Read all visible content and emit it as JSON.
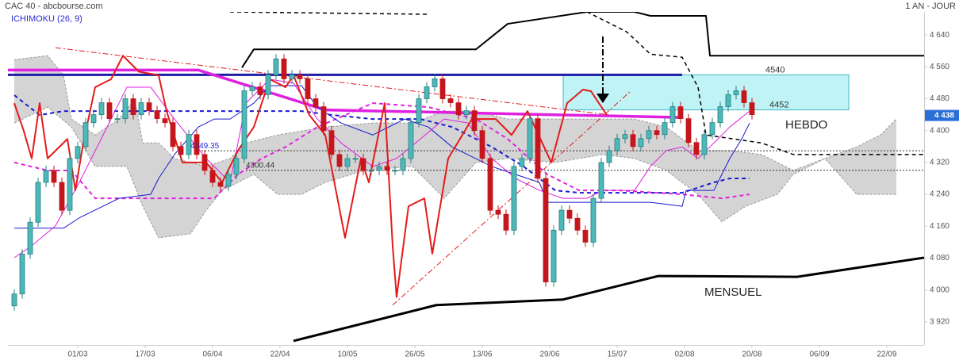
{
  "chart_data": {
    "type": "candlestick",
    "title": "CAC 40 - abcbourse.com",
    "period": "1 AN - JOUR",
    "indicator": "ICHIMOKU (26, 9)",
    "xlim": [
      -0.8,
      114.7
    ],
    "xticks": [
      {
        "value": 8,
        "label": "01/03"
      },
      {
        "value": 16.5,
        "label": "17/03"
      },
      {
        "value": 25,
        "label": "06/04"
      },
      {
        "value": 33.5,
        "label": "22/04"
      },
      {
        "value": 42,
        "label": "10/05"
      },
      {
        "value": 50.5,
        "label": "26/05"
      },
      {
        "value": 59,
        "label": "13/06"
      },
      {
        "value": 67.5,
        "label": "29/06"
      },
      {
        "value": 76,
        "label": "15/07"
      },
      {
        "value": 84.5,
        "label": "02/08"
      },
      {
        "value": 93,
        "label": "20/08"
      },
      {
        "value": 101.5,
        "label": "06/09"
      },
      {
        "value": 110,
        "label": "22/09"
      }
    ],
    "ylim": [
      3862,
      4698
    ],
    "yticks": [
      {
        "value": 3920,
        "label": "3 920"
      },
      {
        "value": 4000,
        "label": "4 000"
      },
      {
        "value": 4080,
        "label": "4 080"
      },
      {
        "value": 4160,
        "label": "4 160"
      },
      {
        "value": 4240,
        "label": "4 240"
      },
      {
        "value": 4320,
        "label": "4 320"
      },
      {
        "value": 4400,
        "label": "4 400"
      },
      {
        "value": 4480,
        "label": "4 480"
      },
      {
        "value": 4560,
        "label": "4 560"
      },
      {
        "value": 4640,
        "label": "4 640"
      }
    ],
    "up_color": "#4cb8b8",
    "down_color": "#c4161c",
    "open": [
      3960,
      3990,
      4090,
      4170,
      4270,
      4300,
      4270,
      4200,
      4330,
      4360,
      4420,
      4440,
      4470,
      4430,
      4430,
      4480,
      4440,
      4470,
      4450,
      4430,
      4420,
      4360,
      4340,
      4390,
      4340,
      4300,
      4270,
      4260,
      4290,
      4330,
      4500,
      4510,
      4490,
      4540,
      4580,
      4530,
      4540,
      4530,
      4480,
      4460,
      4400,
      4340,
      4310,
      4330,
      4330,
      4300,
      4300,
      4310,
      4300,
      4300,
      4330,
      4420,
      4480,
      4510,
      4530,
      4480,
      4470,
      4440,
      4450,
      4400,
      4330,
      4200,
      4190,
      4150,
      4310,
      4330,
      4430,
      4280,
      4020,
      4150,
      4200,
      4180,
      4150,
      4120,
      4230,
      4320,
      4350,
      4380,
      4390,
      4360,
      4380,
      4400,
      4390,
      4420,
      4460,
      4430,
      4370,
      4340,
      4390,
      4420,
      4460,
      4490,
      4500,
      4470
    ],
    "high": [
      4002,
      4102,
      4182,
      4282,
      4312,
      4312,
      4282,
      4342,
      4372,
      4432,
      4452,
      4482,
      4482,
      4442,
      4492,
      4492,
      4482,
      4482,
      4462,
      4442,
      4432,
      4372,
      4402,
      4402,
      4352,
      4312,
      4282,
      4302,
      4342,
      4512,
      4522,
      4522,
      4552,
      4592,
      4592,
      4552,
      4552,
      4542,
      4492,
      4472,
      4412,
      4352,
      4342,
      4342,
      4342,
      4312,
      4322,
      4322,
      4312,
      4342,
      4432,
      4492,
      4522,
      4542,
      4542,
      4492,
      4482,
      4462,
      4462,
      4412,
      4342,
      4212,
      4202,
      4322,
      4342,
      4442,
      4442,
      4292,
      4162,
      4212,
      4212,
      4192,
      4162,
      4242,
      4332,
      4362,
      4392,
      4402,
      4402,
      4392,
      4412,
      4412,
      4432,
      4472,
      4472,
      4442,
      4382,
      4402,
      4432,
      4472,
      4502,
      4512,
      4512,
      4482
    ],
    "low": [
      3948,
      3978,
      4078,
      4158,
      4258,
      4258,
      4188,
      4188,
      4318,
      4348,
      4408,
      4428,
      4418,
      4418,
      4418,
      4428,
      4428,
      4438,
      4418,
      4408,
      4348,
      4328,
      4328,
      4328,
      4288,
      4258,
      4248,
      4248,
      4278,
      4318,
      4488,
      4478,
      4478,
      4528,
      4518,
      4518,
      4518,
      4468,
      4448,
      4388,
      4328,
      4298,
      4298,
      4318,
      4288,
      4288,
      4288,
      4288,
      4288,
      4288,
      4318,
      4408,
      4468,
      4498,
      4468,
      4458,
      4428,
      4428,
      4388,
      4318,
      4188,
      4178,
      4138,
      4138,
      4298,
      4318,
      4268,
      4008,
      4008,
      4138,
      4168,
      4138,
      4108,
      4108,
      4218,
      4308,
      4338,
      4368,
      4348,
      4348,
      4368,
      4378,
      4378,
      4408,
      4418,
      4358,
      4328,
      4328,
      4378,
      4408,
      4448,
      4478,
      4458,
      4428
    ],
    "close": [
      3990,
      4090,
      4170,
      4270,
      4300,
      4270,
      4200,
      4330,
      4360,
      4420,
      4440,
      4470,
      4430,
      4430,
      4480,
      4440,
      4470,
      4450,
      4430,
      4420,
      4360,
      4340,
      4390,
      4340,
      4300,
      4270,
      4260,
      4290,
      4330,
      4500,
      4510,
      4490,
      4540,
      4580,
      4530,
      4540,
      4530,
      4480,
      4460,
      4400,
      4340,
      4310,
      4330,
      4330,
      4300,
      4300,
      4310,
      4300,
      4300,
      4330,
      4420,
      4480,
      4510,
      4530,
      4480,
      4470,
      4440,
      4450,
      4400,
      4330,
      4200,
      4190,
      4150,
      4310,
      4330,
      4430,
      4280,
      4020,
      4150,
      4200,
      4180,
      4150,
      4120,
      4230,
      4320,
      4350,
      4380,
      4390,
      4360,
      4380,
      4400,
      4390,
      4420,
      4460,
      4430,
      4370,
      4340,
      4390,
      4420,
      4460,
      4490,
      4500,
      4470,
      4440
    ],
    "cloud": {
      "color": "#d4d4d4",
      "upper": {
        "x": [
          0,
          4.2,
          6.2,
          7.2,
          10.2,
          13.2,
          15.2,
          16.2,
          18.2,
          20.2,
          24.2,
          27.2,
          29.2,
          33.2,
          39.2,
          45.2,
          50.2,
          54.2,
          58.2,
          62.2,
          68.2,
          74.2,
          78.2,
          82.2,
          86.2,
          90.2,
          94.2,
          98.2,
          102.2,
          106.2,
          109.2,
          111.2
        ],
        "values": [
          4578,
          4588,
          4539,
          4429,
          4389,
          4429,
          4479,
          4369,
          4369,
          4330,
          4310,
          4330,
          4369,
          4389,
          4409,
          4419,
          4419,
          4449,
          4449,
          4429,
          4429,
          4429,
          4429,
          4409,
          4350,
          4350,
          4340,
          4300,
          4330,
          4359,
          4389,
          4429
        ]
      },
      "lower": {
        "x": [
          0,
          4.2,
          7.2,
          10.2,
          14.2,
          16.2,
          18.2,
          22.2,
          24.2,
          26.2,
          30.2,
          33.2,
          36.2,
          39.2,
          44.2,
          50.2,
          54.2,
          58.2,
          62.2,
          68.2,
          74.2,
          78.2,
          82.2,
          86.2,
          89.2,
          92.2,
          96.2,
          98.2,
          102.2,
          106.2,
          111.2
        ],
        "values": [
          4419,
          4459,
          4409,
          4310,
          4310,
          4210,
          4131,
          4141,
          4200,
          4250,
          4290,
          4240,
          4240,
          4270,
          4300,
          4310,
          4230,
          4320,
          4330,
          4320,
          4340,
          4330,
          4300,
          4240,
          4171,
          4210,
          4240,
          4290,
          4330,
          4240,
          4240
        ]
      }
    },
    "zone": {
      "x": [
        69.2,
        105.2
      ],
      "values": [
        4452,
        4540
      ],
      "color": "#bff3f6"
    },
    "levels": [
      {
        "value": 4349.35,
        "x": [
          23.2,
          114.7
        ]
      },
      {
        "value": 4300.44,
        "x": [
          29.2,
          114.7
        ]
      }
    ],
    "current": {
      "value": 4438,
      "label": "4 438",
      "color": "#2a6fd6"
    },
    "annotations": [
      "HEBDO",
      "MENSUEL"
    ],
    "overlays": [
      {
        "color": "#000000",
        "width": 2,
        "dash": "solid",
        "x": [
          28.7,
          30.2,
          58.2,
          62.2,
          72.2,
          78.2,
          80.2,
          87.2,
          87.7,
          114.7
        ],
        "values": [
          4558,
          4604,
          4604,
          4668,
          4698,
          4698,
          4688,
          4688,
          4588,
          4588
        ]
      },
      {
        "color": "#000000",
        "width": 1.5,
        "dash": "dash",
        "x": [
          27.2,
          52.2
        ],
        "values": [
          4698,
          4692
        ]
      },
      {
        "color": "#000000",
        "width": 1.5,
        "dash": "dash",
        "x": [
          72.2,
          77.2,
          80.2,
          84.2,
          86.2,
          87.2,
          94.2,
          98.2,
          114.7
        ],
        "values": [
          4698,
          4648,
          4592,
          4584,
          4509,
          4389,
          4369,
          4340,
          4340
        ]
      },
      {
        "color": "#000000",
        "width": 3,
        "dash": "solid",
        "x": [
          35.2,
          53.2,
          69.2,
          81.2,
          98.7,
          114.7
        ],
        "values": [
          3872,
          3962,
          3976,
          4035,
          4033,
          4081
        ]
      },
      {
        "color": "#e31b1b",
        "width": 1,
        "dash": "dashdot",
        "x": [
          5.2,
          75.2
        ],
        "values": [
          4608,
          4439
        ]
      },
      {
        "color": "#e31b1b",
        "width": 1,
        "dash": "dashdot",
        "x": [
          47.7,
          77.7
        ],
        "values": [
          3962,
          4499
        ]
      },
      {
        "color": "#1c1ca8",
        "width": 3,
        "dash": "solid",
        "x": [
          -0.8,
          84.2
        ],
        "values": [
          4540,
          4540
        ]
      },
      {
        "color": "#e020e0",
        "width": 3.5,
        "dash": "solid",
        "x": [
          -0.8,
          23.2,
          39.2,
          84.2
        ],
        "values": [
          4552,
          4552,
          4452,
          4433
        ]
      },
      {
        "color": "#1a1ad0",
        "width": 2,
        "dash": "dash",
        "x": [
          0,
          3.2,
          6.2,
          18.2,
          36.2,
          40.2,
          45.2,
          51.2,
          55.2,
          60.2,
          64.2,
          68.2,
          71.2,
          84.2,
          88.2,
          90.2,
          92.7
        ],
        "values": [
          4489,
          4439,
          4449,
          4449,
          4449,
          4439,
          4429,
          4429,
          4409,
          4359,
          4310,
          4250,
          4244,
          4244,
          4270,
          4280,
          4280
        ]
      },
      {
        "color": "#e020e0",
        "width": 2,
        "dash": "dash",
        "x": [
          0,
          4.2,
          7.2,
          10.2,
          25.2,
          28.2,
          31.2,
          34.2,
          38.2,
          45.2,
          52.2,
          58.2,
          62.2,
          67.2,
          71.2,
          76.2,
          84.2,
          89.2,
          92.7
        ],
        "values": [
          4320,
          4300,
          4300,
          4230,
          4230,
          4290,
          4330,
          4359,
          4409,
          4469,
          4459,
          4429,
          4379,
          4290,
          4250,
          4250,
          4240,
          4230,
          4240
        ]
      },
      {
        "color": "#1a1ad0",
        "width": 1,
        "dash": "solid",
        "x": [
          0,
          6.2,
          8.2,
          13.2,
          17.2,
          18.2,
          20.2,
          23.2,
          25.2,
          27.2,
          30.2,
          32.2,
          36.2,
          38.2,
          41.2,
          45.2,
          49.2,
          52.2,
          55.2,
          60.2,
          66.2,
          67.2,
          77.2,
          80.2,
          84.2,
          84.7,
          88.2,
          90.2,
          91.7,
          92.7
        ],
        "values": [
          4155,
          4155,
          4181,
          4230,
          4240,
          4280,
          4340,
          4409,
          4429,
          4429,
          4469,
          4513,
          4513,
          4459,
          4419,
          4389,
          4429,
          4409,
          4359,
          4310,
          4270,
          4220,
          4220,
          4220,
          4210,
          4250,
          4250,
          4330,
          4379,
          4419
        ]
      },
      {
        "color": "#e020e0",
        "width": 1,
        "dash": "solid",
        "x": [
          0,
          2.2,
          5.2,
          8.2,
          11.2,
          14.2,
          17.2,
          20.2,
          24.2,
          27.2,
          29.2,
          32.2,
          35.2,
          38.2,
          41.2,
          45.2,
          48.2,
          51.2,
          54.2,
          57.2,
          60.2,
          63.2,
          66.2,
          69.2,
          72.2,
          74.2,
          78.2,
          80.2,
          82.2,
          84.2,
          86.2,
          88.2,
          90.2,
          92.7
        ],
        "values": [
          4081,
          4111,
          4161,
          4270,
          4389,
          4509,
          4509,
          4429,
          4330,
          4270,
          4469,
          4529,
          4519,
          4429,
          4369,
          4310,
          4330,
          4379,
          4429,
          4419,
          4330,
          4280,
          4250,
          4230,
          4230,
          4250,
          4250,
          4310,
          4350,
          4359,
          4330,
          4369,
          4409,
          4449
        ]
      },
      {
        "color": "#e31b1b",
        "width": 2,
        "dash": "solid",
        "x": [
          0,
          1.2,
          2.2,
          3.2,
          4.2,
          6.7,
          7.7,
          8.7,
          10.2,
          12.2,
          13.7,
          15.7,
          18.2,
          19.2,
          21.2,
          24.2,
          26.2,
          28.2,
          30.2,
          32.2,
          34.2,
          35.2,
          37.2,
          39.2,
          41.7,
          43.7,
          44.7,
          46.7,
          47.7,
          48.2,
          49.7,
          51.7,
          52.7,
          54.7,
          57.7,
          60.7,
          62.7,
          64.7,
          67.7,
          69.7,
          71.7,
          72.7,
          74.7
        ],
        "values": [
          4469,
          4399,
          4330,
          4469,
          4330,
          4379,
          4250,
          4369,
          4509,
          4529,
          4588,
          4548,
          4539,
          4449,
          4320,
          4320,
          4270,
          4350,
          4409,
          4529,
          4509,
          4539,
          4439,
          4389,
          4131,
          4330,
          4270,
          4469,
          4111,
          3982,
          4210,
          4230,
          4091,
          4330,
          4429,
          4429,
          4389,
          4449,
          4320,
          4469,
          4503,
          4499,
          4439
        ]
      }
    ]
  }
}
